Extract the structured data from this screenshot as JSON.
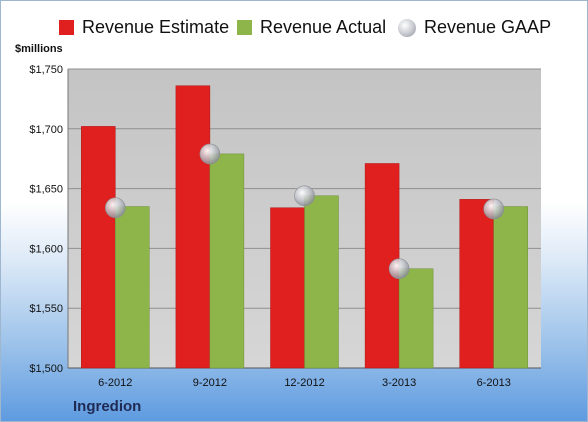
{
  "chart_data": {
    "type": "bar",
    "categories": [
      "6-2012",
      "9-2012",
      "12-2012",
      "3-2013",
      "6-2013"
    ],
    "series": [
      {
        "name": "Revenue Estimate",
        "values": [
          1702,
          1736,
          1634,
          1671,
          1641
        ],
        "color": "#e01f1f"
      },
      {
        "name": "Revenue Actual",
        "values": [
          1635,
          1679,
          1644,
          1583,
          1635
        ],
        "color": "#8db54a"
      },
      {
        "name": "Revenue GAAP",
        "values": [
          1634,
          1679,
          1644,
          1583,
          1633
        ],
        "color": "#c9cbd0",
        "marker": "circle"
      }
    ],
    "ylabel": "$millions",
    "ylim": [
      1500,
      1750
    ],
    "yticks": [
      1500,
      1550,
      1600,
      1650,
      1700,
      1750
    ],
    "ytick_labels": [
      "$1,500",
      "$1,550",
      "$1,600",
      "$1,650",
      "$1,700",
      "$1,750"
    ],
    "grid": true,
    "legend_position": "top",
    "plot_background": "#c8c8c8"
  },
  "footer": {
    "company": "Ingredion"
  }
}
